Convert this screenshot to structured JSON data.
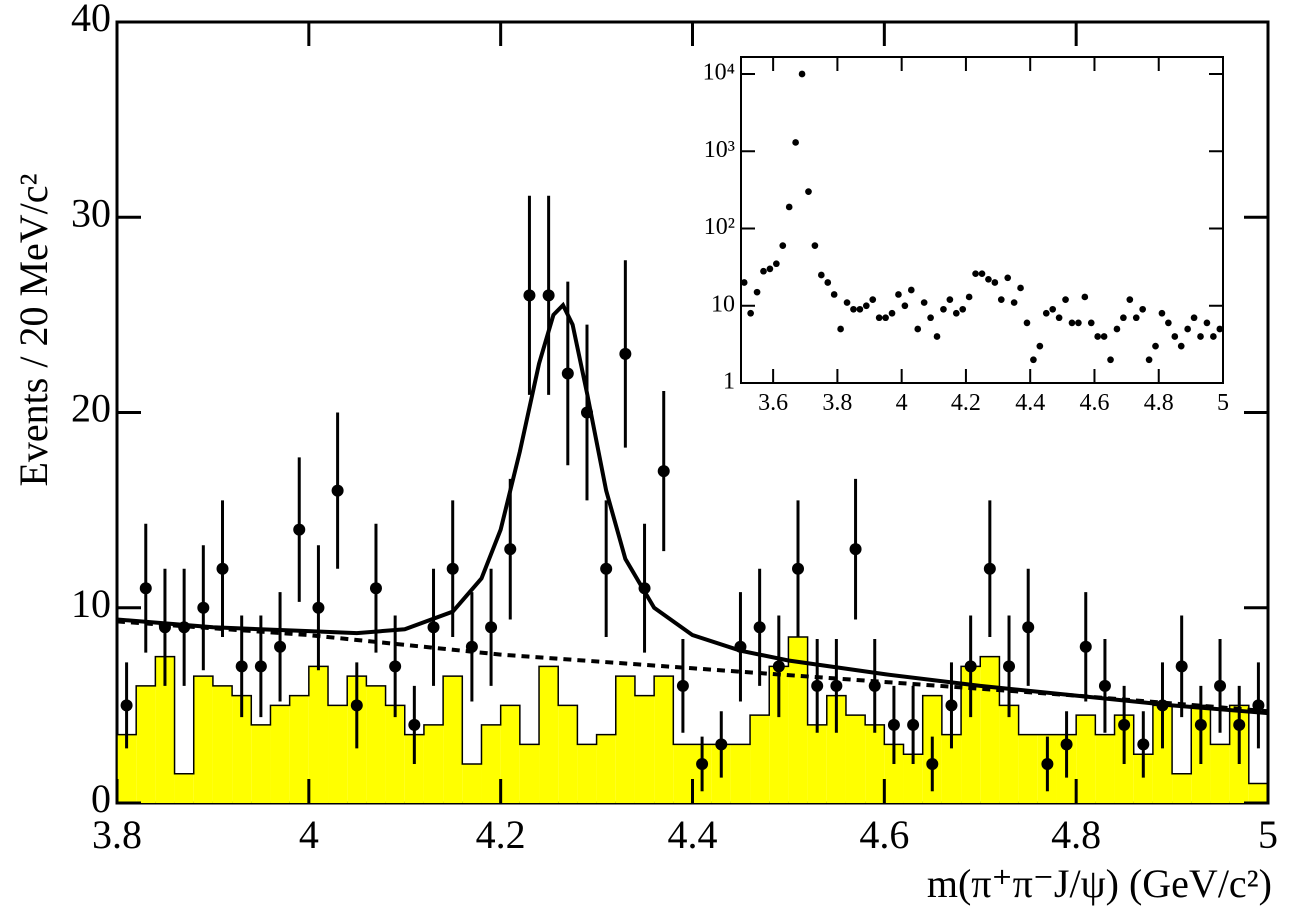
{
  "chart_data": [
    {
      "type": "scatter",
      "y_label": "Events / 20 MeV/c²",
      "x_label": "m(π⁺π⁻J/ψ) (GeV/c²)",
      "xlim": [
        3.8,
        5.0
      ],
      "ylim": [
        0,
        40
      ],
      "xticks": [
        3.8,
        4,
        4.2,
        4.4,
        4.6,
        4.8,
        5
      ],
      "yticks": [
        0,
        10,
        20,
        30,
        40
      ],
      "color": "#000000",
      "x": [
        3.81,
        3.83,
        3.85,
        3.87,
        3.89,
        3.91,
        3.93,
        3.95,
        3.97,
        3.99,
        4.01,
        4.03,
        4.05,
        4.07,
        4.09,
        4.11,
        4.13,
        4.15,
        4.17,
        4.19,
        4.21,
        4.23,
        4.25,
        4.27,
        4.29,
        4.31,
        4.33,
        4.35,
        4.37,
        4.39,
        4.41,
        4.43,
        4.45,
        4.47,
        4.49,
        4.51,
        4.53,
        4.55,
        4.57,
        4.59,
        4.61,
        4.63,
        4.65,
        4.67,
        4.69,
        4.71,
        4.73,
        4.75,
        4.77,
        4.79,
        4.81,
        4.83,
        4.85,
        4.87,
        4.89,
        4.91,
        4.93,
        4.95,
        4.97,
        4.99
      ],
      "values": [
        5,
        11,
        9,
        9,
        10,
        12,
        7,
        7,
        8,
        14,
        10,
        16,
        5,
        11,
        7,
        4,
        9,
        12,
        8,
        9,
        13,
        26,
        26,
        22,
        20,
        12,
        23,
        11,
        17,
        6,
        2,
        3,
        8,
        9,
        7,
        12,
        6,
        6,
        13,
        6,
        4,
        4,
        2,
        5,
        7,
        12,
        7,
        9,
        2,
        3,
        8,
        6,
        4,
        3,
        5,
        7,
        4,
        6,
        4,
        5
      ],
      "errors": [
        2.2,
        3.3,
        3,
        3,
        3.2,
        3.5,
        2.6,
        2.6,
        2.8,
        3.7,
        3.2,
        4,
        2.2,
        3.3,
        2.6,
        2,
        3,
        3.5,
        2.8,
        3,
        3.6,
        5.1,
        5.1,
        4.7,
        4.5,
        3.5,
        4.8,
        3.3,
        4.1,
        2.4,
        1.4,
        1.7,
        2.8,
        3,
        2.6,
        3.5,
        2.4,
        2.4,
        3.6,
        2.4,
        2,
        2,
        1.4,
        2.2,
        2.6,
        3.5,
        2.6,
        3,
        1.4,
        1.7,
        2.8,
        2.4,
        2,
        1.7,
        2.2,
        2.6,
        2,
        2.4,
        2,
        2.2
      ],
      "histogram": {
        "color": "#ffff00",
        "bins": [
          3.8,
          3.82,
          3.84,
          3.86,
          3.88,
          3.9,
          3.92,
          3.94,
          3.96,
          3.98,
          4.0,
          4.02,
          4.04,
          4.06,
          4.08,
          4.1,
          4.12,
          4.14,
          4.16,
          4.18,
          4.2,
          4.22,
          4.24,
          4.26,
          4.28,
          4.3,
          4.32,
          4.34,
          4.36,
          4.38,
          4.4,
          4.42,
          4.44,
          4.46,
          4.48,
          4.5,
          4.52,
          4.54,
          4.56,
          4.58,
          4.6,
          4.62,
          4.64,
          4.66,
          4.68,
          4.7,
          4.72,
          4.74,
          4.76,
          4.78,
          4.8,
          4.82,
          4.84,
          4.86,
          4.88,
          4.9,
          4.92,
          4.94,
          4.96,
          4.98,
          5.0
        ],
        "counts": [
          3.5,
          6,
          7.5,
          1.5,
          6.5,
          6,
          5.5,
          4,
          5,
          5.5,
          7,
          5,
          6.5,
          6,
          5,
          3.5,
          4,
          6.5,
          2,
          4,
          5,
          3,
          7,
          5,
          3,
          3.5,
          6.5,
          5.5,
          6.5,
          3,
          3,
          3,
          3,
          4.5,
          7,
          8.5,
          4,
          5.5,
          4.5,
          4,
          3,
          2.5,
          5.5,
          3.5,
          7,
          7.5,
          5,
          3.5,
          3.5,
          3.5,
          4.5,
          3.5,
          4.5,
          2.5,
          5,
          1.5,
          5,
          3,
          5,
          1
        ]
      },
      "fit": {
        "x": [
          3.8,
          3.9,
          4.0,
          4.05,
          4.1,
          4.15,
          4.18,
          4.2,
          4.22,
          4.24,
          4.255,
          4.265,
          4.275,
          4.29,
          4.31,
          4.33,
          4.36,
          4.4,
          4.45,
          4.5,
          4.6,
          4.7,
          4.8,
          4.9,
          5.0
        ],
        "values": [
          9.4,
          9.0,
          8.8,
          8.7,
          8.9,
          9.8,
          11.5,
          14,
          18,
          22.5,
          25,
          25.5,
          24.5,
          21,
          16,
          12.5,
          10,
          8.6,
          7.8,
          7.3,
          6.6,
          6.0,
          5.5,
          5.0,
          4.6
        ]
      },
      "background_fit": {
        "dashed": true,
        "x": [
          3.8,
          4.0,
          4.2,
          4.4,
          4.6,
          4.8,
          5.0
        ],
        "values": [
          9.3,
          8.6,
          7.6,
          6.9,
          6.2,
          5.5,
          4.7
        ]
      }
    },
    {
      "type": "scatter",
      "log_y": true,
      "xlim": [
        3.5,
        5.0
      ],
      "ylim": [
        1,
        16600
      ],
      "xticks": [
        3.6,
        3.8,
        4,
        4.2,
        4.4,
        4.6,
        4.8,
        5
      ],
      "yticks": [
        1,
        10,
        {
          "value": 100,
          "label": "10²"
        },
        {
          "value": 1000,
          "label": "10³"
        },
        {
          "value": 10000,
          "label": "10⁴"
        }
      ],
      "color": "#000000",
      "x": [
        3.51,
        3.53,
        3.55,
        3.57,
        3.59,
        3.61,
        3.63,
        3.65,
        3.67,
        3.69,
        3.71,
        3.73,
        3.75,
        3.77,
        3.79,
        3.81,
        3.83,
        3.85,
        3.87,
        3.89,
        3.91,
        3.93,
        3.95,
        3.97,
        3.99,
        4.01,
        4.03,
        4.05,
        4.07,
        4.09,
        4.11,
        4.13,
        4.15,
        4.17,
        4.19,
        4.21,
        4.23,
        4.25,
        4.27,
        4.29,
        4.31,
        4.33,
        4.35,
        4.37,
        4.39,
        4.41,
        4.43,
        4.45,
        4.47,
        4.49,
        4.51,
        4.53,
        4.55,
        4.57,
        4.59,
        4.61,
        4.63,
        4.65,
        4.67,
        4.69,
        4.71,
        4.73,
        4.75,
        4.77,
        4.79,
        4.81,
        4.83,
        4.85,
        4.87,
        4.89,
        4.91,
        4.93,
        4.95,
        4.97,
        4.99
      ],
      "values": [
        20,
        8,
        15,
        28,
        30,
        35,
        60,
        190,
        1300,
        10000,
        300,
        60,
        25,
        20,
        14,
        5,
        11,
        9,
        9,
        10,
        12,
        7,
        7,
        8,
        14,
        10,
        16,
        5,
        11,
        7,
        4,
        9,
        12,
        8,
        9,
        13,
        26,
        26,
        22,
        20,
        12,
        23,
        11,
        17,
        6,
        2,
        3,
        8,
        9,
        7,
        12,
        6,
        6,
        13,
        6,
        4,
        4,
        2,
        5,
        7,
        12,
        7,
        9,
        2,
        3,
        8,
        6,
        4,
        3,
        5,
        7,
        4,
        6,
        4,
        5
      ]
    }
  ]
}
